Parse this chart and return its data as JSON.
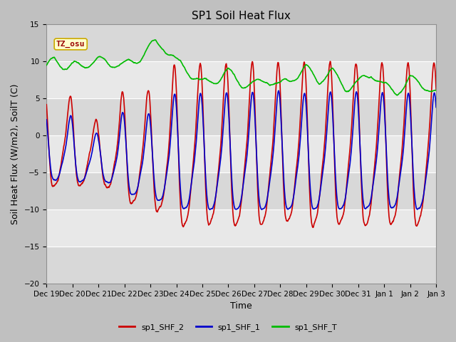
{
  "title": "SP1 Soil Heat Flux",
  "ylabel": "Soil Heat Flux (W/m2), SoilT (C)",
  "xlabel": "Time",
  "ylim": [
    -20,
    15
  ],
  "xlim": [
    0,
    15
  ],
  "tz_label": "TZ_osu",
  "legend_entries": [
    "sp1_SHF_2",
    "sp1_SHF_1",
    "sp1_SHF_T"
  ],
  "line_colors": [
    "#cc0000",
    "#0000cc",
    "#00bb00"
  ],
  "xtick_labels": [
    "Dec 19",
    "Dec 20",
    "Dec 21",
    "Dec 22",
    "Dec 23",
    "Dec 24",
    "Dec 25",
    "Dec 26",
    "Dec 27",
    "Dec 28",
    "Dec 29",
    "Dec 30",
    "Dec 31",
    "Jan 1",
    "Jan 2",
    "Jan 3"
  ],
  "ytick_vals": [
    -20,
    -15,
    -10,
    -5,
    0,
    5,
    10,
    15
  ],
  "title_fontsize": 11,
  "axis_label_fontsize": 9,
  "tick_fontsize": 7.5,
  "tz_fontsize": 8,
  "legend_fontsize": 8,
  "fig_facecolor": "#c0c0c0",
  "ax_facecolor": "#d8d8d8",
  "stripe_color": "#e8e8e8",
  "grid_color": "#ffffff",
  "annotation_facecolor": "#ffffcc",
  "annotation_edgecolor": "#ccaa00",
  "annotation_textcolor": "#990000"
}
